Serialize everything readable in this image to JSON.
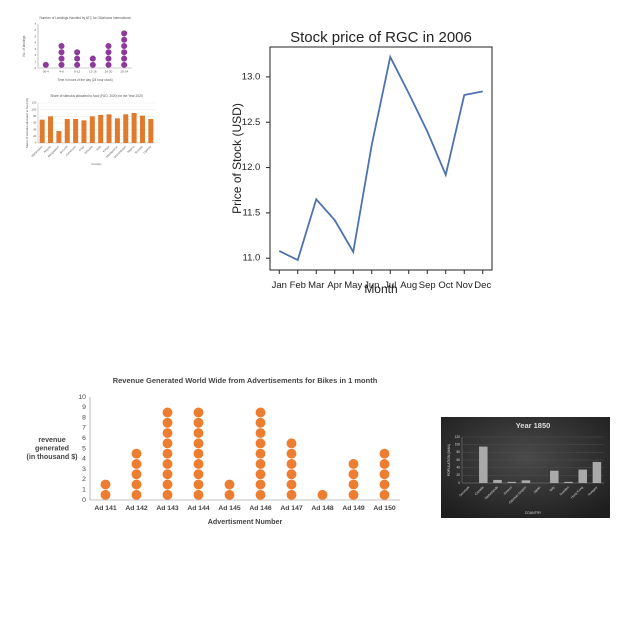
{
  "chart_data": [
    {
      "type": "dot",
      "title": "Number of Landings Handled by ATC for Oklahoma International",
      "y_label": "No. of landings",
      "x_label": "Time in hours of the day (24 hour clock)",
      "categories": [
        "00-4",
        "4-8",
        "8-12",
        "12-16",
        "16-20",
        "20-24"
      ],
      "values": [
        1,
        4,
        3,
        2,
        4,
        6
      ],
      "color": "#8e3a9b",
      "ylim": [
        0,
        7
      ],
      "yticks": [
        0,
        1,
        2,
        3,
        4,
        5,
        6,
        7
      ],
      "grid": false
    },
    {
      "type": "bar",
      "title": "Share of stimulus allocated to food (FAO, 2020) for the Year 2020",
      "y_label": "Share of stimulus allocated to food (%)",
      "x_label": "Country",
      "categories": [
        "Afghanistan",
        "Angola",
        "Bangladesh",
        "Burundi",
        "Cameroon",
        "Chad",
        "Ethiopia",
        "Haiti",
        "Kenya",
        "Madagascar",
        "Mozambique",
        "Nigeria",
        "Somalia",
        "Uganda"
      ],
      "values": [
        70,
        80,
        36,
        72,
        72,
        68,
        80,
        84,
        86,
        74,
        86,
        90,
        82,
        72
      ],
      "color": "#e07b2e",
      "ylim": [
        0,
        120
      ],
      "yticks": [
        0,
        20,
        40,
        60,
        80,
        100,
        120
      ],
      "grid": true
    },
    {
      "type": "line",
      "title": "Stock price of RGC in 2006",
      "y_label": "Price of Stock (USD)",
      "x_label": "Month",
      "categories": [
        "Jan",
        "Feb",
        "Mar",
        "Apr",
        "May",
        "Jun",
        "Jul",
        "Aug",
        "Sep",
        "Oct",
        "Nov",
        "Dec"
      ],
      "values": [
        11.08,
        10.98,
        11.65,
        11.42,
        11.07,
        12.25,
        13.22,
        12.82,
        12.4,
        11.92,
        12.8,
        12.84
      ],
      "color": "#4c72b0",
      "ylim": [
        10.87,
        13.33
      ],
      "yticks": [
        {
          "value": 11,
          "label": "11.0"
        },
        {
          "value": 11.5,
          "label": "11.5"
        },
        {
          "value": 12,
          "label": "12.0"
        },
        {
          "value": 12.5,
          "label": "12.5"
        },
        {
          "value": 13,
          "label": "13.0"
        }
      ],
      "grid": false
    },
    {
      "type": "dot",
      "title": "Revenue Generated World Wide from Advertisements for Bikes in 1 month",
      "y_label": [
        "revenue",
        "generated",
        "(in thousand $)"
      ],
      "x_label": "Advertisment Number",
      "categories": [
        "Ad 141",
        "Ad 142",
        "Ad 143",
        "Ad 144",
        "Ad 145",
        "Ad 146",
        "Ad 147",
        "Ad 148",
        "Ad 149",
        "Ad 150"
      ],
      "values": [
        2,
        5,
        9,
        9,
        2,
        9,
        6,
        1,
        4,
        5
      ],
      "color": "#ed7d31",
      "ylim": [
        0,
        10
      ],
      "yticks": [
        0,
        1,
        2,
        3,
        4,
        5,
        6,
        7,
        8,
        9,
        10
      ],
      "grid": false
    },
    {
      "type": "bar",
      "title": "Year 1850",
      "y_label": "POPULATION (MAN)",
      "x_label": "COUNTRY",
      "categories": [
        "Denmark",
        "Canada",
        "Netherlands",
        "Greece",
        "Ottoman Empire",
        "Japan",
        "Italy",
        "Sweden",
        "Hong Kong",
        "Hungary"
      ],
      "values": [
        0,
        95,
        8,
        3,
        7,
        0,
        32,
        3,
        35,
        55
      ],
      "color": "#a9a9a9",
      "ylim": [
        0,
        120
      ],
      "yticks": [
        0,
        20,
        40,
        60,
        80,
        100,
        120
      ],
      "grid": true
    }
  ]
}
